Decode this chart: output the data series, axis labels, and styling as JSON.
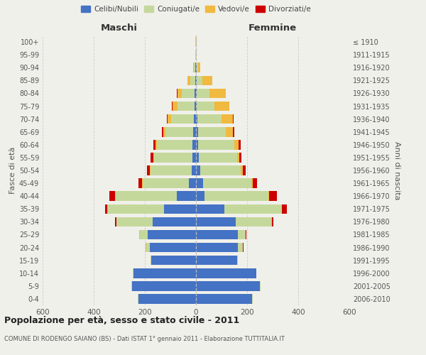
{
  "age_groups": [
    "100+",
    "95-99",
    "90-94",
    "85-89",
    "80-84",
    "75-79",
    "70-74",
    "65-69",
    "60-64",
    "55-59",
    "50-54",
    "45-49",
    "40-44",
    "35-39",
    "30-34",
    "25-29",
    "20-24",
    "15-19",
    "10-14",
    "5-9",
    "0-4"
  ],
  "birth_years": [
    "≤ 1910",
    "1911-1915",
    "1916-1920",
    "1921-1925",
    "1926-1930",
    "1931-1935",
    "1936-1940",
    "1941-1945",
    "1946-1950",
    "1951-1955",
    "1956-1960",
    "1961-1965",
    "1966-1970",
    "1971-1975",
    "1976-1980",
    "1981-1985",
    "1986-1990",
    "1991-1995",
    "1996-2000",
    "2001-2005",
    "2006-2010"
  ],
  "males": {
    "celibi": [
      1,
      1,
      2,
      4,
      5,
      6,
      8,
      10,
      14,
      15,
      18,
      28,
      75,
      125,
      170,
      190,
      180,
      175,
      245,
      250,
      225
    ],
    "coniugati": [
      1,
      2,
      5,
      18,
      50,
      65,
      90,
      110,
      140,
      148,
      160,
      180,
      240,
      220,
      140,
      30,
      15,
      3,
      2,
      2,
      2
    ],
    "vedovi": [
      0,
      1,
      3,
      10,
      18,
      22,
      14,
      9,
      5,
      4,
      3,
      2,
      2,
      2,
      2,
      1,
      1,
      0,
      0,
      0,
      0
    ],
    "divorziati": [
      0,
      0,
      0,
      0,
      1,
      1,
      2,
      3,
      8,
      10,
      12,
      14,
      22,
      8,
      5,
      2,
      1,
      0,
      0,
      0,
      0
    ]
  },
  "females": {
    "nubili": [
      1,
      1,
      2,
      3,
      4,
      4,
      6,
      7,
      9,
      11,
      16,
      28,
      32,
      110,
      155,
      165,
      165,
      160,
      235,
      250,
      220
    ],
    "coniugate": [
      0,
      1,
      7,
      22,
      50,
      68,
      95,
      110,
      140,
      150,
      160,
      190,
      250,
      225,
      140,
      28,
      18,
      4,
      2,
      2,
      2
    ],
    "vedove": [
      1,
      2,
      8,
      38,
      62,
      58,
      43,
      28,
      18,
      9,
      7,
      4,
      4,
      2,
      2,
      1,
      1,
      0,
      0,
      0,
      0
    ],
    "divorziate": [
      0,
      0,
      0,
      1,
      1,
      1,
      2,
      4,
      7,
      9,
      11,
      18,
      32,
      18,
      7,
      2,
      1,
      0,
      0,
      0,
      0
    ]
  },
  "colors": {
    "celibi": "#4472c4",
    "coniugati": "#c5d89c",
    "vedovi": "#f0b940",
    "divorziati": "#cc0000"
  },
  "xlim": 600,
  "title": "Popolazione per età, sesso e stato civile - 2011",
  "subtitle": "COMUNE DI RODENGO SAIANO (BS) - Dati ISTAT 1° gennaio 2011 - Elaborazione TUTTITALIA.IT",
  "ylabel": "Fasce di età",
  "ylabel_right": "Anni di nascita",
  "xlabel_left": "Maschi",
  "xlabel_right": "Femmine",
  "bg_color": "#f0f0eb",
  "grid_color": "#cccccc"
}
